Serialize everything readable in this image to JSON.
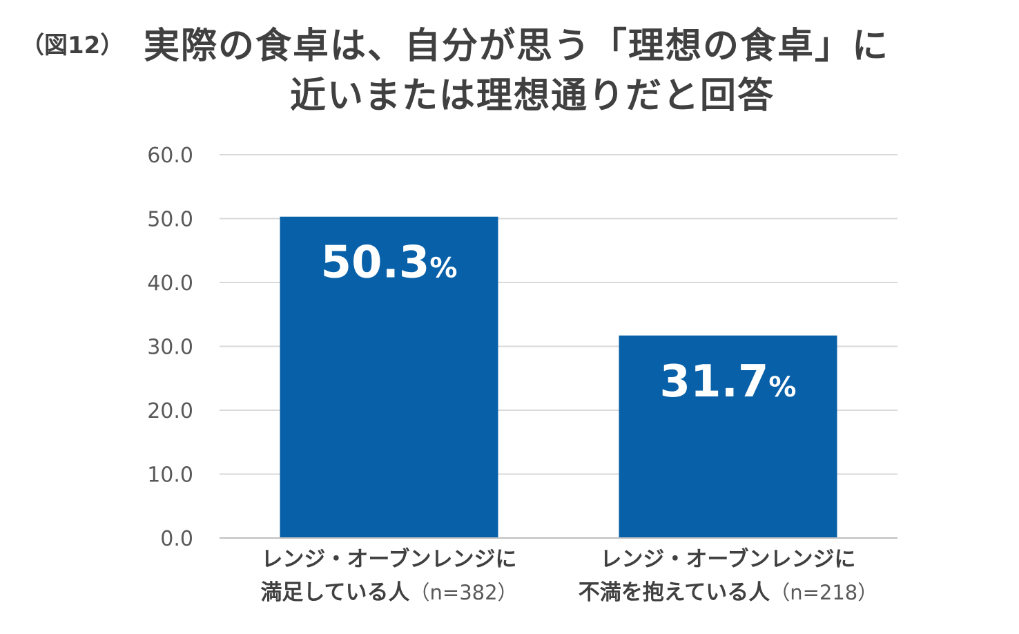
{
  "title": {
    "figure_label": "（図12）",
    "line1": "実際の食卓は、自分が思う「理想の食卓」に",
    "line2": "近いまたは理想通りだと回答"
  },
  "chart_data": {
    "type": "bar",
    "title": "実際の食卓は、自分が思う「理想の食卓」に近いまたは理想通りだと回答",
    "categories": [
      {
        "line1": "レンジ・オーブンレンジに",
        "line2": "満足している人",
        "n": "（n=382）"
      },
      {
        "line1": "レンジ・オーブンレンジに",
        "line2": "不満を抱えている人",
        "n": "（n=218）"
      }
    ],
    "values": [
      50.3,
      31.7
    ],
    "value_labels": [
      {
        "number": "50.3",
        "unit": "%"
      },
      {
        "number": "31.7",
        "unit": "%"
      }
    ],
    "y_ticks": [
      "0.0",
      "10.0",
      "20.0",
      "30.0",
      "40.0",
      "50.0",
      "60.0"
    ],
    "ylim": [
      0,
      60
    ],
    "grid": true,
    "xlabel": "",
    "ylabel": "",
    "bar_color": "#0760A8",
    "grid_color": "#d9d9d9"
  }
}
